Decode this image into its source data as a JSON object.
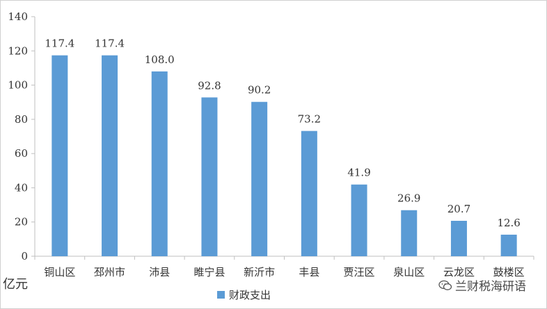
{
  "chart_data": {
    "type": "bar",
    "categories": [
      "铜山区",
      "邳州市",
      "沛县",
      "睢宁县",
      "新沂市",
      "丰县",
      "贾汪区",
      "泉山区",
      "云龙区",
      "鼓楼区"
    ],
    "series": [
      {
        "name": "财政支出",
        "values": [
          117.4,
          117.4,
          108.0,
          92.8,
          90.2,
          73.2,
          41.9,
          26.9,
          20.7,
          12.6
        ]
      }
    ],
    "value_labels": [
      "117.4",
      "117.4",
      "108.0",
      "92.8",
      "90.2",
      "73.2",
      "41.9",
      "26.9",
      "20.7",
      "12.6"
    ],
    "ylim": [
      0,
      140
    ],
    "yticks": [
      0,
      20,
      40,
      60,
      80,
      100,
      120,
      140
    ],
    "ylabel": "亿元",
    "legend": "bottom",
    "grid": false,
    "colors": {
      "bar": "#5b9bd5",
      "axis": "#bfbfbf",
      "text": "#333333"
    }
  },
  "watermark": {
    "text": "兰财税海研语",
    "icon": "wechat-icon"
  }
}
